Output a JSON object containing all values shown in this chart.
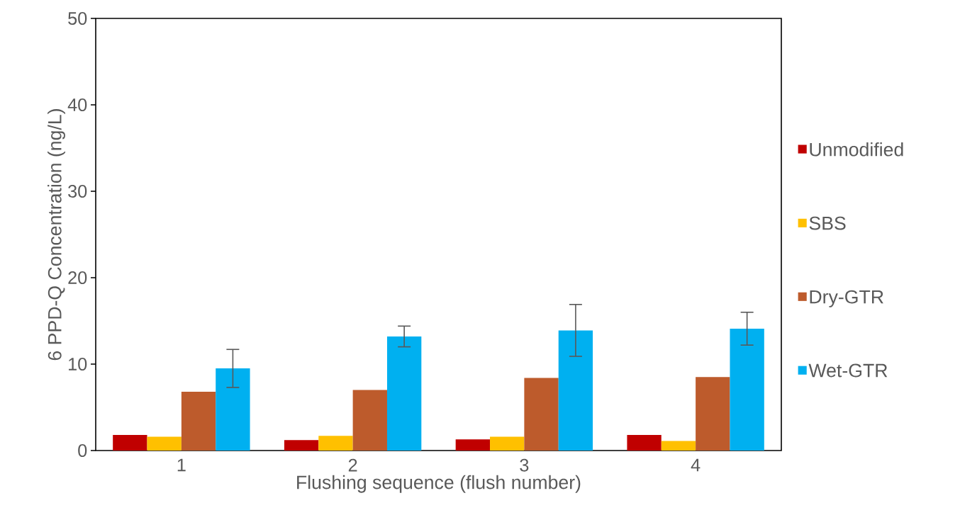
{
  "chart_data": {
    "type": "bar",
    "xlabel": "Flushing sequence (flush number)",
    "ylabel": "6 PPD-Q Concentration (ng/L)",
    "categories": [
      "1",
      "2",
      "3",
      "4"
    ],
    "series": [
      {
        "name": "Unmodified",
        "color": "#c00000",
        "values": [
          1.8,
          1.2,
          1.3,
          1.8
        ]
      },
      {
        "name": "SBS",
        "color": "#ffc000",
        "values": [
          1.6,
          1.7,
          1.6,
          1.1
        ]
      },
      {
        "name": "Dry-GTR",
        "color": "#bd5b2c",
        "values": [
          6.8,
          7.0,
          8.4,
          8.5
        ]
      },
      {
        "name": "Wet-GTR",
        "color": "#00b0f0",
        "values": [
          9.5,
          13.2,
          13.9,
          14.1
        ],
        "errors": [
          2.2,
          1.2,
          3.0,
          1.9
        ]
      }
    ],
    "ylim": [
      0,
      50
    ],
    "yticks": [
      0,
      10,
      20,
      30,
      40,
      50
    ],
    "grid": false,
    "legend": "right"
  }
}
